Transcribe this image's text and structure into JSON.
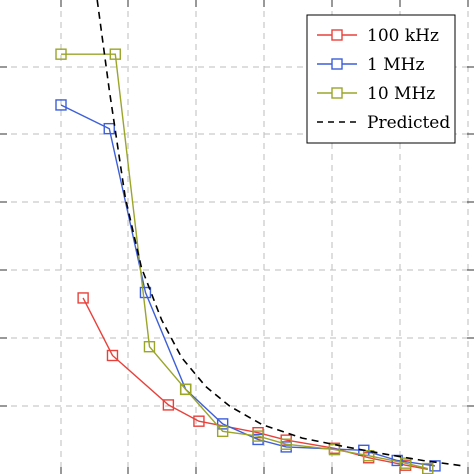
{
  "chart_data": {
    "type": "line",
    "title": "",
    "xlabel": "",
    "ylabel": "",
    "xlim": [
      0,
      10
    ],
    "ylim": [
      0,
      7
    ],
    "grid": true,
    "legend_position": "top-right",
    "series": [
      {
        "name": "100 kHz",
        "color": "#e8413b",
        "marker": "square",
        "x": [
          0.55,
          1.28,
          2.67,
          3.43,
          4.9,
          5.6,
          6.8,
          7.65,
          8.57,
          9.12
        ],
        "y": [
          2.6,
          1.75,
          1.02,
          0.78,
          0.61,
          0.5,
          0.38,
          0.24,
          0.13,
          0.07
        ]
      },
      {
        "name": "1 MHz",
        "color": "#3d5fd8",
        "marker": "square",
        "x": [
          0.0,
          1.2,
          2.1,
          3.1,
          4.02,
          4.9,
          5.6,
          7.53,
          8.36,
          9.3
        ],
        "y": [
          5.45,
          5.1,
          2.68,
          1.25,
          0.74,
          0.51,
          0.4,
          0.35,
          0.2,
          0.12
        ]
      },
      {
        "name": "10 MHz",
        "color": "#9aa52a",
        "marker": "square",
        "x": [
          0.0,
          1.35,
          2.2,
          3.1,
          4.02,
          4.9,
          5.6,
          6.8,
          7.65,
          8.57,
          9.12
        ],
        "y": [
          6.2,
          6.2,
          1.88,
          1.25,
          0.63,
          0.56,
          0.44,
          0.36,
          0.27,
          0.16,
          0.08
        ]
      },
      {
        "name": "Predicted",
        "color": "#000000",
        "dash": true,
        "x": [
          0.9,
          1.2,
          1.6,
          2.0,
          2.5,
          3.0,
          3.6,
          4.2,
          5.0,
          6.0,
          7.0,
          8.0,
          9.0,
          10.0
        ],
        "y": [
          7.0,
          5.67,
          4.08,
          3.05,
          2.28,
          1.72,
          1.29,
          1.0,
          0.73,
          0.53,
          0.41,
          0.3,
          0.2,
          0.12
        ]
      }
    ]
  }
}
